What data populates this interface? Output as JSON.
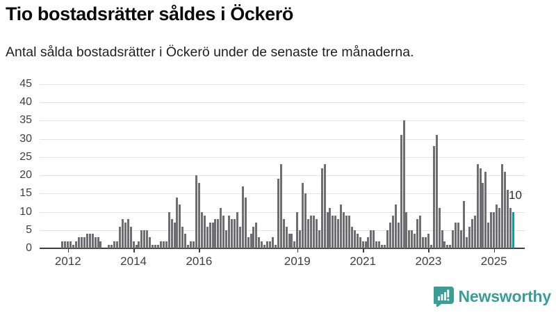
{
  "header": {
    "title": "Tio bostadsrätter såldes i Öckerö",
    "subtitle": "Antal sålda bostadsrätter i Öckerö under de senaste tre månaderna."
  },
  "branding": {
    "logo_text": "Newsworthy",
    "logo_icon": "bar-chart-speech-bubble-icon",
    "logo_color": "#3a9e96"
  },
  "colors": {
    "bar": "#6d6d72",
    "highlight": "#00a3a1",
    "gridline": "#e4e4e4",
    "axis": "#3d3d3d"
  },
  "chart_data": {
    "type": "bar",
    "title": "Tio bostadsrätter såldes i Öckerö",
    "subtitle": "Antal sålda bostadsrätter i Öckerö under de senaste tre månaderna.",
    "unit": "sålda bostadsrätter (rullande tre månader)",
    "frequency": "monthly",
    "start_month": "2011-03",
    "end_month": "2025-08",
    "values": [
      0,
      0,
      0,
      0,
      0,
      0,
      0,
      0,
      2,
      2,
      2,
      2,
      1,
      2,
      3,
      3,
      3,
      4,
      4,
      4,
      3,
      3,
      2,
      0,
      0,
      1,
      1,
      2,
      2,
      6,
      8,
      7,
      8,
      6,
      2,
      1,
      2,
      5,
      5,
      5,
      3,
      1,
      1,
      1,
      2,
      2,
      2,
      10,
      8,
      7,
      14,
      12,
      6,
      4,
      1,
      2,
      2,
      20,
      18,
      10,
      9,
      6,
      7,
      7,
      8,
      8,
      11,
      9,
      5,
      9,
      8,
      8,
      10,
      6,
      17,
      14,
      3,
      4,
      6,
      7,
      3,
      2,
      1,
      2,
      2,
      3,
      1,
      19,
      23,
      8,
      6,
      4,
      4,
      2,
      10,
      5,
      18,
      15,
      8,
      9,
      9,
      8,
      5,
      22,
      23,
      10,
      11,
      9,
      9,
      8,
      12,
      10,
      9,
      9,
      6,
      5,
      4,
      3,
      2,
      2,
      3,
      5,
      5,
      2,
      2,
      1,
      1,
      5,
      7,
      9,
      12,
      7,
      31,
      35,
      10,
      5,
      5,
      4,
      8,
      9,
      3,
      3,
      4,
      1,
      28,
      31,
      11,
      5,
      2,
      1,
      1,
      5,
      7,
      7,
      5,
      13,
      3,
      6,
      8,
      9,
      23,
      22,
      18,
      21,
      7,
      10,
      10,
      12,
      11,
      23,
      21,
      16,
      11,
      10
    ],
    "highlight": {
      "index": 173,
      "value": 10,
      "label": "10"
    },
    "y_axis": {
      "min": 0,
      "max": 45,
      "step": 5,
      "tick_labels": [
        "0",
        "5",
        "10",
        "15",
        "20",
        "25",
        "30",
        "35",
        "40",
        "45"
      ]
    },
    "x_axis": {
      "tick_years": [
        "2012",
        "2014",
        "2016",
        "2019",
        "2021",
        "2023",
        "2025"
      ]
    },
    "grid": true,
    "legend": false
  }
}
